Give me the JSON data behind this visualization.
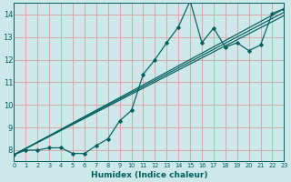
{
  "xlabel": "Humidex (Indice chaleur)",
  "bg_color": "#cce8e8",
  "grid_color": "#daa0a0",
  "line_color": "#006060",
  "xlim": [
    0,
    23
  ],
  "ylim": [
    7.5,
    14.5
  ],
  "xticks": [
    0,
    1,
    2,
    3,
    4,
    5,
    6,
    7,
    8,
    9,
    10,
    11,
    12,
    13,
    14,
    15,
    16,
    17,
    18,
    19,
    20,
    21,
    22,
    23
  ],
  "yticks": [
    8,
    9,
    10,
    11,
    12,
    13,
    14
  ],
  "jagged_x": [
    0,
    1,
    2,
    3,
    4,
    5,
    6,
    7,
    8,
    9,
    10,
    11,
    12,
    13,
    14,
    15,
    16,
    17,
    18,
    19,
    20,
    21,
    22,
    23
  ],
  "jagged_y": [
    7.8,
    8.0,
    8.0,
    8.1,
    8.1,
    7.85,
    7.85,
    8.2,
    8.5,
    9.3,
    9.75,
    11.35,
    12.0,
    12.75,
    13.45,
    14.6,
    12.75,
    13.4,
    12.55,
    12.75,
    12.4,
    12.65,
    14.05,
    14.25
  ],
  "line_straight1": [
    [
      0,
      7.8
    ],
    [
      23,
      14.25
    ]
  ],
  "line_straight2": [
    [
      0,
      7.8
    ],
    [
      23,
      14.1
    ]
  ],
  "line_straight3": [
    [
      0,
      7.8
    ],
    [
      23,
      13.95
    ]
  ]
}
